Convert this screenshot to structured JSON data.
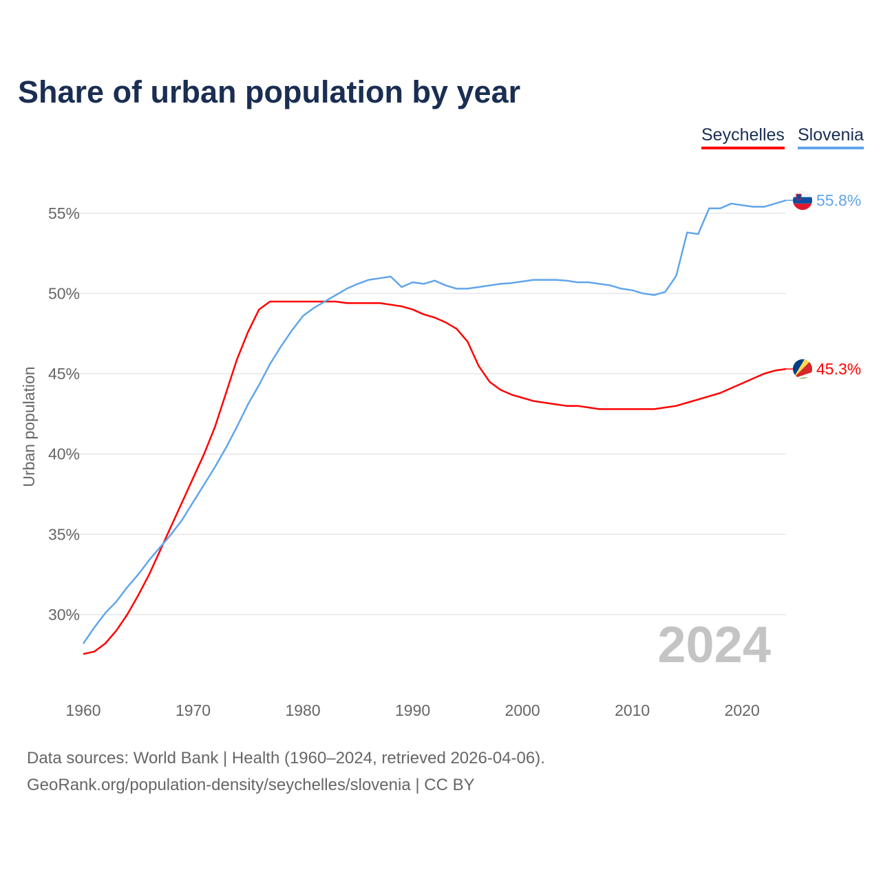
{
  "chart_data": {
    "type": "line",
    "title": "Share of urban population by year",
    "xlabel": "",
    "ylabel": "Urban population",
    "xlim": [
      1960,
      2024
    ],
    "ylim": [
      26.5,
      57.5
    ],
    "yticks": [
      30,
      35,
      40,
      45,
      50,
      55
    ],
    "ytick_labels": [
      "30%",
      "35%",
      "40%",
      "45%",
      "50%",
      "55%"
    ],
    "xticks": [
      1960,
      1970,
      1980,
      1990,
      2000,
      2010,
      2020
    ],
    "xtick_labels": [
      "1960",
      "1970",
      "1980",
      "1990",
      "2000",
      "2010",
      "2020"
    ],
    "grid": true,
    "legend_placement": "top-right",
    "year_watermark": "2024",
    "x": [
      1960,
      1961,
      1962,
      1963,
      1964,
      1965,
      1966,
      1967,
      1968,
      1969,
      1970,
      1971,
      1972,
      1973,
      1974,
      1975,
      1976,
      1977,
      1978,
      1979,
      1980,
      1981,
      1982,
      1983,
      1984,
      1985,
      1986,
      1987,
      1988,
      1989,
      1990,
      1991,
      1992,
      1993,
      1994,
      1995,
      1996,
      1997,
      1998,
      1999,
      2000,
      2001,
      2002,
      2003,
      2004,
      2005,
      2006,
      2007,
      2008,
      2009,
      2010,
      2011,
      2012,
      2013,
      2014,
      2015,
      2016,
      2017,
      2018,
      2019,
      2020,
      2021,
      2022,
      2023,
      2024
    ],
    "series": [
      {
        "name": "Seychelles",
        "color": "#ff0000",
        "end_label": "45.3%",
        "values": [
          27.55,
          27.7,
          28.2,
          29.0,
          30.0,
          31.2,
          32.5,
          34.0,
          35.5,
          37.0,
          38.5,
          40.0,
          41.7,
          43.8,
          45.9,
          47.6,
          49.0,
          49.5,
          49.5,
          49.5,
          49.5,
          49.5,
          49.5,
          49.5,
          49.4,
          49.4,
          49.4,
          49.4,
          49.3,
          49.2,
          49.0,
          48.7,
          48.5,
          48.2,
          47.8,
          47.0,
          45.5,
          44.5,
          44.0,
          43.7,
          43.5,
          43.3,
          43.2,
          43.1,
          43.0,
          43.0,
          42.9,
          42.8,
          42.8,
          42.8,
          42.8,
          42.8,
          42.8,
          42.9,
          43.0,
          43.2,
          43.4,
          43.6,
          43.8,
          44.1,
          44.4,
          44.7,
          45.0,
          45.2,
          45.3
        ]
      },
      {
        "name": "Slovenia",
        "color": "#60a5ea",
        "end_label": "55.8%",
        "values": [
          28.2,
          29.2,
          30.1,
          30.8,
          31.7,
          32.5,
          33.4,
          34.2,
          35.0,
          35.9,
          37.0,
          38.1,
          39.2,
          40.4,
          41.7,
          43.1,
          44.3,
          45.6,
          46.7,
          47.7,
          48.6,
          49.1,
          49.5,
          49.9,
          50.3,
          50.6,
          50.85,
          50.95,
          51.05,
          50.4,
          50.7,
          50.6,
          50.8,
          50.5,
          50.3,
          50.3,
          50.4,
          50.5,
          50.6,
          50.65,
          50.75,
          50.85,
          50.85,
          50.85,
          50.8,
          50.7,
          50.7,
          50.6,
          50.5,
          50.3,
          50.2,
          50.0,
          49.9,
          50.1,
          51.1,
          53.8,
          53.7,
          55.3,
          55.3,
          55.6,
          55.5,
          55.4,
          55.4,
          55.6,
          55.8
        ]
      }
    ]
  },
  "footer": {
    "line1": "Data sources: World Bank | Health (1960–2024, retrieved 2026-04-06).",
    "line2": "GeoRank.org/population-density/seychelles/slovenia | CC BY"
  }
}
